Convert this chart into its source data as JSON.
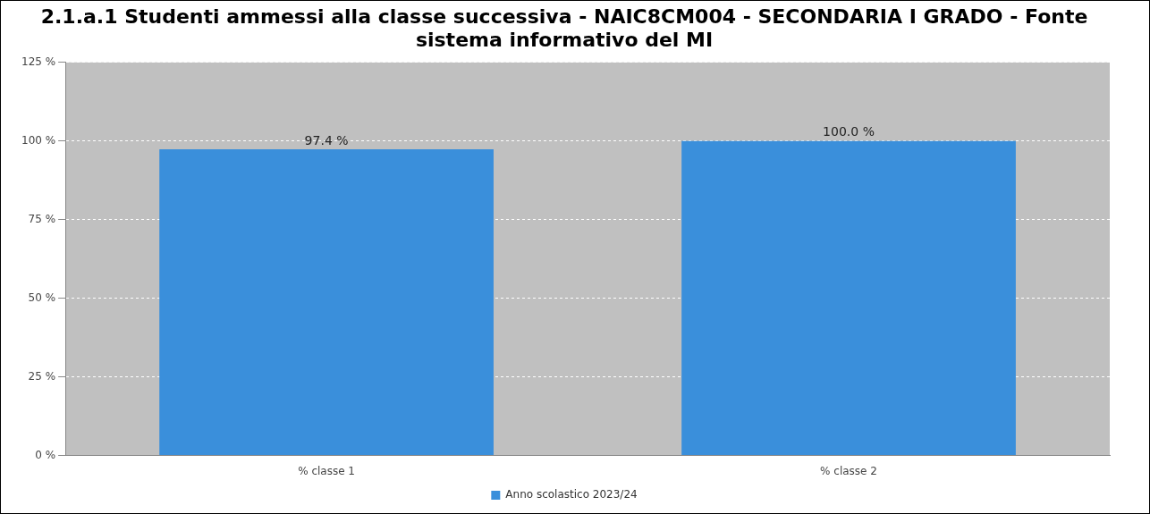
{
  "chart_data": {
    "type": "bar",
    "title": "2.1.a.1 Studenti ammessi alla classe successiva - NAIC8CM004 - SECONDARIA I GRADO - Fonte sistema informativo del MI",
    "categories": [
      "% classe 1",
      "% classe 2"
    ],
    "series": [
      {
        "name": "Anno scolastico 2023/24",
        "color": "#3a8fdb",
        "values": [
          97.4,
          100.0
        ],
        "value_labels": [
          "97.4 %",
          "100.0 %"
        ]
      }
    ],
    "ylim": [
      0,
      125
    ],
    "yticks": [
      {
        "value": 0,
        "label": "0 %"
      },
      {
        "value": 25,
        "label": "25 %"
      },
      {
        "value": 50,
        "label": "50 %"
      },
      {
        "value": 75,
        "label": "75 %"
      },
      {
        "value": 100,
        "label": "100 %"
      },
      {
        "value": 125,
        "label": "125 %"
      }
    ],
    "grid": "y",
    "legend": "bottom"
  }
}
